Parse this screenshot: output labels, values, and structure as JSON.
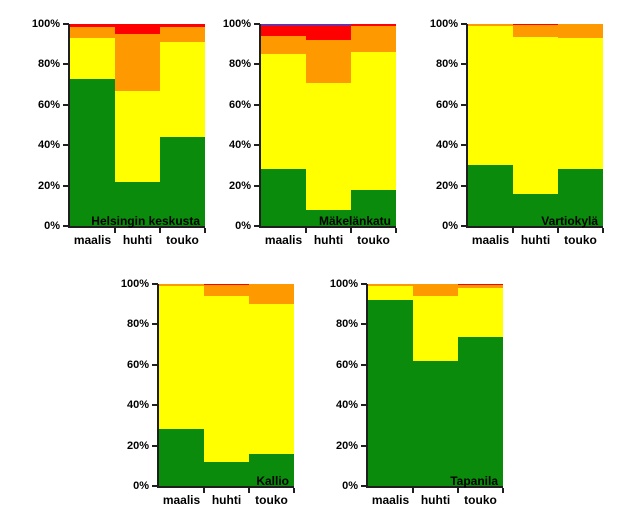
{
  "figure": {
    "background": "#ffffff",
    "text_color": "#000000",
    "axis_color": "#1f1f1f"
  },
  "chart_data": [
    {
      "type": "bar",
      "subtype": "stacked-100-percent",
      "title": "Helsingin keskusta",
      "categories": [
        "maalis",
        "huhti",
        "touko"
      ],
      "series": [
        {
          "name": "green",
          "color": "#0b8b0b",
          "values": [
            73,
            22,
            44
          ]
        },
        {
          "name": "yellow",
          "color": "#ffff00",
          "values": [
            20,
            45,
            47
          ]
        },
        {
          "name": "orange",
          "color": "#ff9900",
          "values": [
            5.5,
            28,
            7.5
          ]
        },
        {
          "name": "red",
          "color": "#ff0000",
          "values": [
            1.5,
            5,
            1.5
          ]
        },
        {
          "name": "purple",
          "color": "#7030a0",
          "values": [
            0,
            0,
            0
          ]
        }
      ],
      "ylim": [
        0,
        100
      ],
      "yticks": [
        "0%",
        "20%",
        "40%",
        "60%",
        "80%",
        "100%"
      ],
      "grid": false,
      "legend": false
    },
    {
      "type": "bar",
      "subtype": "stacked-100-percent",
      "title": "Mäkelänkatu",
      "categories": [
        "maalis",
        "huhti",
        "touko"
      ],
      "series": [
        {
          "name": "green",
          "color": "#0b8b0b",
          "values": [
            28,
            8,
            18
          ]
        },
        {
          "name": "yellow",
          "color": "#ffff00",
          "values": [
            57,
            63,
            68
          ]
        },
        {
          "name": "orange",
          "color": "#ff9900",
          "values": [
            9,
            21,
            13
          ]
        },
        {
          "name": "red",
          "color": "#ff0000",
          "values": [
            5,
            7,
            1
          ]
        },
        {
          "name": "purple",
          "color": "#7030a0",
          "values": [
            1,
            1,
            0
          ]
        }
      ],
      "ylim": [
        0,
        100
      ],
      "yticks": [
        "0%",
        "20%",
        "40%",
        "60%",
        "80%",
        "100%"
      ],
      "grid": false,
      "legend": false
    },
    {
      "type": "bar",
      "subtype": "stacked-100-percent",
      "title": "Vartiokylä",
      "categories": [
        "maalis",
        "huhti",
        "touko"
      ],
      "series": [
        {
          "name": "green",
          "color": "#0b8b0b",
          "values": [
            30,
            16,
            28
          ]
        },
        {
          "name": "yellow",
          "color": "#ffff00",
          "values": [
            69,
            77.5,
            65
          ]
        },
        {
          "name": "orange",
          "color": "#ff9900",
          "values": [
            1,
            6,
            7
          ]
        },
        {
          "name": "red",
          "color": "#ff0000",
          "values": [
            0,
            0.5,
            0
          ]
        },
        {
          "name": "purple",
          "color": "#7030a0",
          "values": [
            0,
            0,
            0
          ]
        }
      ],
      "ylim": [
        0,
        100
      ],
      "yticks": [
        "0%",
        "20%",
        "40%",
        "60%",
        "80%",
        "100%"
      ],
      "grid": false,
      "legend": false
    },
    {
      "type": "bar",
      "subtype": "stacked-100-percent",
      "title": "Kallio",
      "categories": [
        "maalis",
        "huhti",
        "touko"
      ],
      "series": [
        {
          "name": "green",
          "color": "#0b8b0b",
          "values": [
            28,
            12,
            16
          ]
        },
        {
          "name": "yellow",
          "color": "#ffff00",
          "values": [
            71,
            82,
            74
          ]
        },
        {
          "name": "orange",
          "color": "#ff9900",
          "values": [
            1,
            5.5,
            10
          ]
        },
        {
          "name": "red",
          "color": "#ff0000",
          "values": [
            0,
            0.5,
            0
          ]
        },
        {
          "name": "purple",
          "color": "#7030a0",
          "values": [
            0,
            0,
            0
          ]
        }
      ],
      "ylim": [
        0,
        100
      ],
      "yticks": [
        "0%",
        "20%",
        "40%",
        "60%",
        "80%",
        "100%"
      ],
      "grid": false,
      "legend": false
    },
    {
      "type": "bar",
      "subtype": "stacked-100-percent",
      "title": "Tapanila",
      "categories": [
        "maalis",
        "huhti",
        "touko"
      ],
      "series": [
        {
          "name": "green",
          "color": "#0b8b0b",
          "values": [
            92,
            62,
            74
          ]
        },
        {
          "name": "yellow",
          "color": "#ffff00",
          "values": [
            7,
            32,
            24
          ]
        },
        {
          "name": "orange",
          "color": "#ff9900",
          "values": [
            1,
            6,
            1.5
          ]
        },
        {
          "name": "red",
          "color": "#ff0000",
          "values": [
            0,
            0,
            0.5
          ]
        },
        {
          "name": "purple",
          "color": "#7030a0",
          "values": [
            0,
            0,
            0
          ]
        }
      ],
      "ylim": [
        0,
        100
      ],
      "yticks": [
        "0%",
        "20%",
        "40%",
        "60%",
        "80%",
        "100%"
      ],
      "grid": false,
      "legend": false
    }
  ]
}
